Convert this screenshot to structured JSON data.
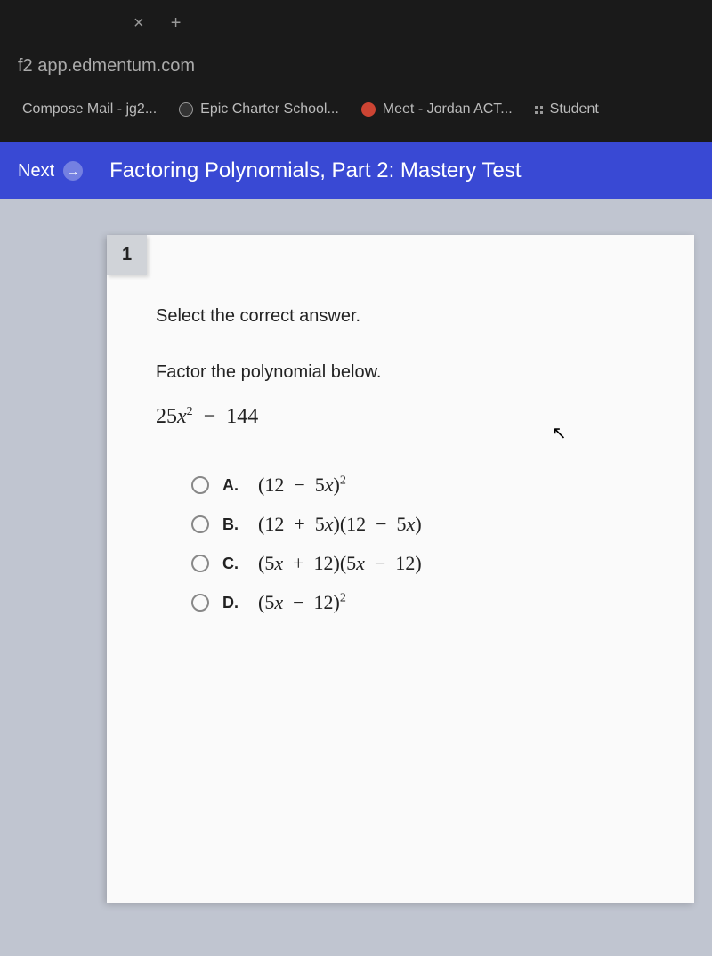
{
  "browser": {
    "tab_close": "×",
    "tab_new": "+",
    "url": "f2 app.edmentum.com",
    "bookmarks": [
      {
        "label": "Compose Mail - jg2..."
      },
      {
        "label": "Epic Charter School..."
      },
      {
        "label": "Meet - Jordan ACT..."
      },
      {
        "label": "Student"
      }
    ]
  },
  "header": {
    "next_label": "Next",
    "arrow": "→",
    "title": "Factoring Polynomials, Part 2: Mastery Test"
  },
  "question": {
    "number": "1",
    "instruction": "Select the correct answer.",
    "prompt": "Factor the polynomial below.",
    "polynomial_html": "25<i>x</i><sup class='sup'>2</sup> &nbsp;−&nbsp; 144",
    "answers": [
      {
        "letter": "A.",
        "math_html": "(12 &nbsp;−&nbsp; 5<i>x</i>)<sup class='sup'>2</sup>"
      },
      {
        "letter": "B.",
        "math_html": "(12 &nbsp;+&nbsp; 5<i>x</i>)(12 &nbsp;−&nbsp; 5<i>x</i>)"
      },
      {
        "letter": "C.",
        "math_html": "(5<i>x</i> &nbsp;+&nbsp; 12)(5<i>x</i> &nbsp;−&nbsp; 12)"
      },
      {
        "letter": "D.",
        "math_html": "(5<i>x</i> &nbsp;−&nbsp; 12)<sup class='sup'>2</sup>"
      }
    ]
  },
  "colors": {
    "header_bg": "#3949d4",
    "content_bg": "#c0c5d0",
    "card_bg": "#fafafa",
    "chrome_bg": "#1a1a1a"
  }
}
